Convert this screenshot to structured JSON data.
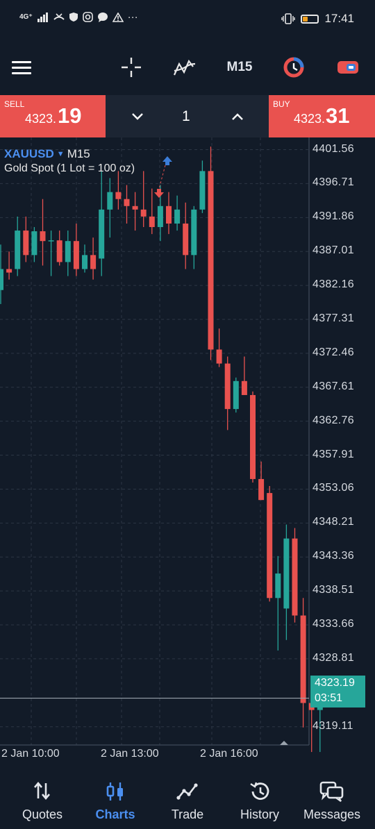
{
  "status_bar": {
    "network": "4G⁺",
    "time": "17:41"
  },
  "toolbar": {
    "timeframe": "M15"
  },
  "trade_panel": {
    "sell_label": "SELL",
    "sell_price_small": "4323.",
    "sell_price_big": "19",
    "buy_label": "BUY",
    "buy_price_small": "4323.",
    "buy_price_big": "31",
    "lot_size": "1"
  },
  "chart": {
    "symbol": "XAUUSD",
    "timeframe": "M15",
    "description": "Gold Spot (1 Lot = 100 oz)",
    "current_price": "4323.19",
    "countdown": "03:51",
    "colors": {
      "bull": "#26a69a",
      "bear": "#e9524f",
      "background": "#121b28",
      "grid": "#2c3644"
    }
  },
  "chart_data": {
    "type": "candlestick",
    "y_tick_labels": [
      "4401.56",
      "4396.71",
      "4391.86",
      "4387.01",
      "4382.16",
      "4377.31",
      "4372.46",
      "4367.61",
      "4362.76",
      "4357.91",
      "4353.06",
      "4348.21",
      "4343.36",
      "4338.51",
      "4333.66",
      "4328.81",
      "4319.11"
    ],
    "x_tick_labels": [
      "2 Jan 10:00",
      "2 Jan 13:00",
      "2 Jan 16:00"
    ],
    "ylim": [
      4316.5,
      4403.3
    ],
    "candles": [
      {
        "o": 4381.5,
        "h": 4388.0,
        "l": 4379.5,
        "c": 4384.5
      },
      {
        "o": 4384.5,
        "h": 4387.0,
        "l": 4383.0,
        "c": 4384.0
      },
      {
        "o": 4384.5,
        "h": 4392.0,
        "l": 4383.5,
        "c": 4390.0
      },
      {
        "o": 4390.0,
        "h": 4392.0,
        "l": 4385.5,
        "c": 4386.5
      },
      {
        "o": 4386.5,
        "h": 4390.5,
        "l": 4385.5,
        "c": 4389.9
      },
      {
        "o": 4389.9,
        "h": 4394.5,
        "l": 4385.0,
        "c": 4388.5
      },
      {
        "o": 4388.5,
        "h": 4390.0,
        "l": 4383.5,
        "c": 4388.6
      },
      {
        "o": 4388.6,
        "h": 4390.0,
        "l": 4385.0,
        "c": 4385.5
      },
      {
        "o": 4385.5,
        "h": 4390.0,
        "l": 4383.5,
        "c": 4388.5
      },
      {
        "o": 4388.5,
        "h": 4391.0,
        "l": 4383.5,
        "c": 4384.5
      },
      {
        "o": 4384.5,
        "h": 4388.0,
        "l": 4384.0,
        "c": 4386.5
      },
      {
        "o": 4386.5,
        "h": 4389.0,
        "l": 4383.0,
        "c": 4384.5
      },
      {
        "o": 4386.0,
        "h": 4398.5,
        "l": 4383.5,
        "c": 4393.0
      },
      {
        "o": 4393.0,
        "h": 4397.5,
        "l": 4389.0,
        "c": 4395.5
      },
      {
        "o": 4395.5,
        "h": 4398.5,
        "l": 4393.0,
        "c": 4394.5
      },
      {
        "o": 4394.5,
        "h": 4396.5,
        "l": 4391.0,
        "c": 4393.5
      },
      {
        "o": 4393.5,
        "h": 4395.5,
        "l": 4390.0,
        "c": 4393.0
      },
      {
        "o": 4393.0,
        "h": 4398.5,
        "l": 4390.5,
        "c": 4392.0
      },
      {
        "o": 4392.0,
        "h": 4396.0,
        "l": 4389.5,
        "c": 4390.5
      },
      {
        "o": 4390.5,
        "h": 4396.5,
        "l": 4388.5,
        "c": 4393.5
      },
      {
        "o": 4393.5,
        "h": 4395.5,
        "l": 4389.5,
        "c": 4391.0
      },
      {
        "o": 4391.0,
        "h": 4395.0,
        "l": 4390.0,
        "c": 4393.0
      },
      {
        "o": 4391.0,
        "h": 4394.0,
        "l": 4384.5,
        "c": 4386.5
      },
      {
        "o": 4386.5,
        "h": 4393.5,
        "l": 4384.5,
        "c": 4393.0
      },
      {
        "o": 4393.0,
        "h": 4400.0,
        "l": 4392.5,
        "c": 4398.5
      },
      {
        "o": 4398.5,
        "h": 4402.0,
        "l": 4371.5,
        "c": 4373.0
      },
      {
        "o": 4373.0,
        "h": 4376.0,
        "l": 4370.5,
        "c": 4371.0
      },
      {
        "o": 4371.0,
        "h": 4372.0,
        "l": 4361.5,
        "c": 4364.5
      },
      {
        "o": 4364.5,
        "h": 4369.0,
        "l": 4364.0,
        "c": 4368.5
      },
      {
        "o": 4368.5,
        "h": 4372.0,
        "l": 4366.5,
        "c": 4366.5
      },
      {
        "o": 4366.5,
        "h": 4367.0,
        "l": 4354.0,
        "c": 4354.5
      },
      {
        "o": 4354.5,
        "h": 4357.0,
        "l": 4351.5,
        "c": 4351.5
      },
      {
        "o": 4352.5,
        "h": 4353.5,
        "l": 4337.0,
        "c": 4337.5
      },
      {
        "o": 4337.5,
        "h": 4343.5,
        "l": 4330.0,
        "c": 4341.0
      },
      {
        "o": 4336.0,
        "h": 4348.0,
        "l": 4331.5,
        "c": 4346.0
      },
      {
        "o": 4346.0,
        "h": 4347.5,
        "l": 4334.0,
        "c": 4335.0
      },
      {
        "o": 4335.0,
        "h": 4337.5,
        "l": 4319.0,
        "c": 4322.5
      },
      {
        "o": 4322.5,
        "h": 4323.5,
        "l": 4315.5,
        "c": 4321.5
      },
      {
        "o": 4321.5,
        "h": 4325.5,
        "l": 4315.5,
        "c": 4323.19
      }
    ]
  },
  "bottom_nav": [
    {
      "label": "Quotes",
      "icon": "quotes-icon"
    },
    {
      "label": "Charts",
      "icon": "charts-icon",
      "active": true
    },
    {
      "label": "Trade",
      "icon": "trade-icon"
    },
    {
      "label": "History",
      "icon": "history-icon"
    },
    {
      "label": "Messages",
      "icon": "messages-icon"
    }
  ]
}
